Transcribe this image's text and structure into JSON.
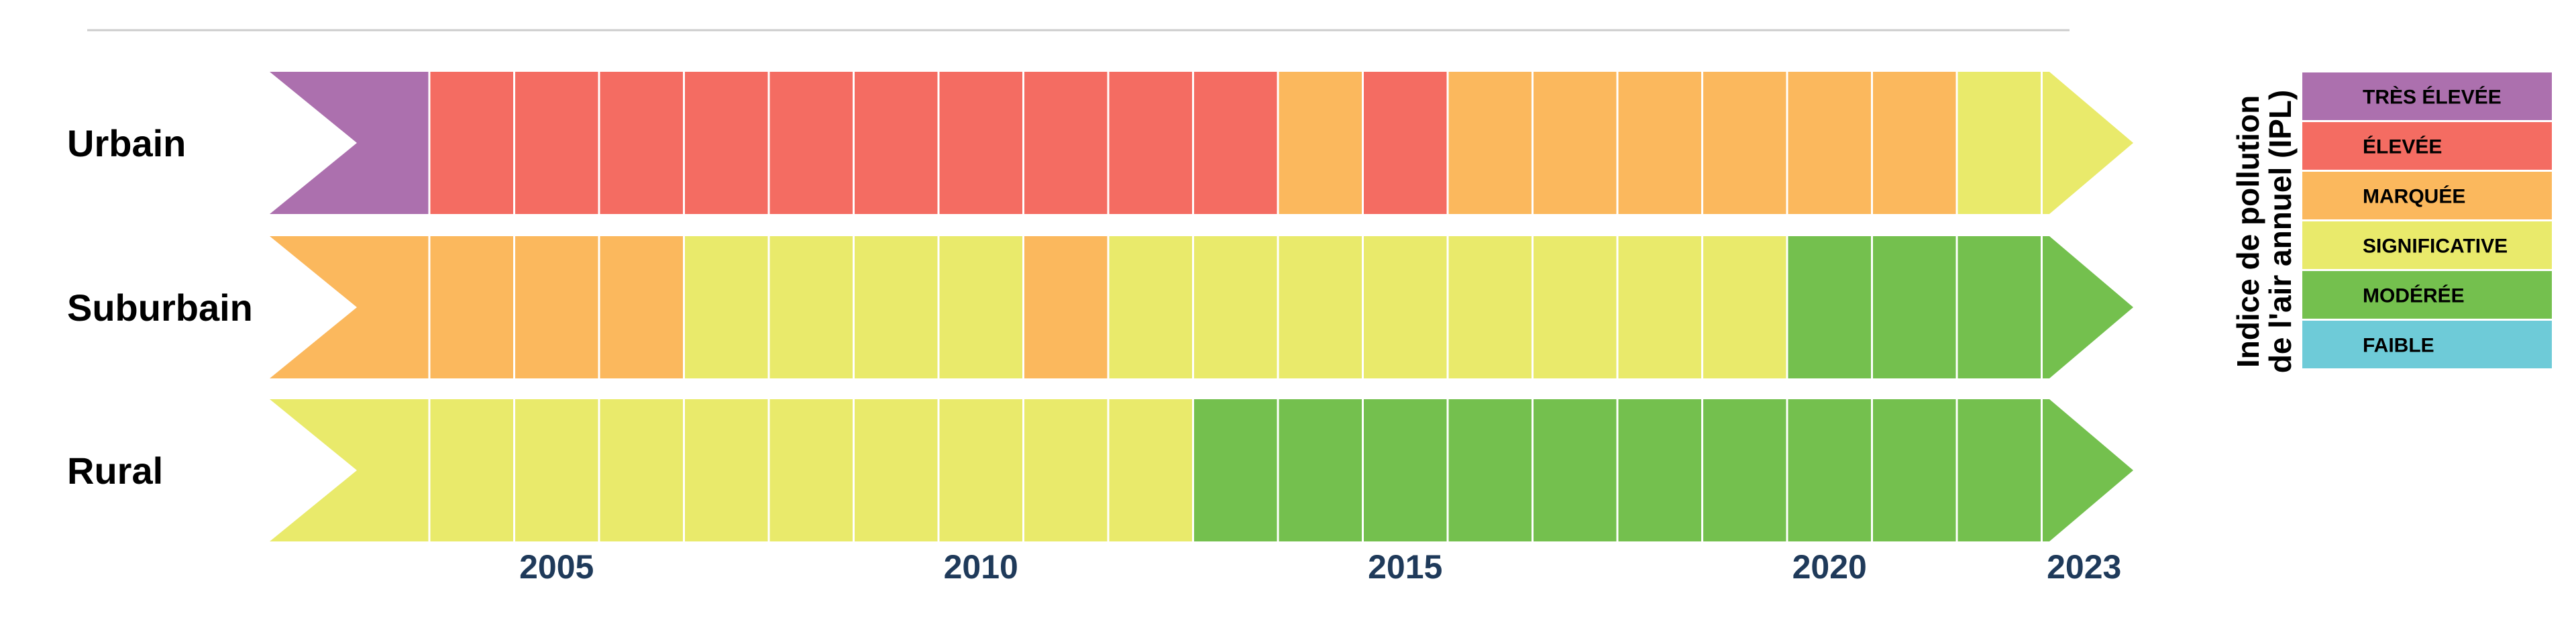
{
  "chart_data": {
    "type": "heatmap",
    "years": [
      2003,
      2004,
      2005,
      2006,
      2007,
      2008,
      2009,
      2010,
      2011,
      2012,
      2013,
      2014,
      2015,
      2016,
      2017,
      2018,
      2019,
      2020,
      2021,
      2022,
      2023
    ],
    "tick_labels": [
      {
        "year": 2005,
        "label": "2005"
      },
      {
        "year": 2010,
        "label": "2010"
      },
      {
        "year": 2015,
        "label": "2015"
      },
      {
        "year": 2020,
        "label": "2020"
      },
      {
        "year": 2023,
        "label": "2023"
      }
    ],
    "rows": [
      {
        "name": "Urbain",
        "levels": [
          "tres_elevee",
          "elevee",
          "elevee",
          "elevee",
          "elevee",
          "elevee",
          "elevee",
          "elevee",
          "elevee",
          "elevee",
          "elevee",
          "marquee",
          "elevee",
          "marquee",
          "marquee",
          "marquee",
          "marquee",
          "marquee",
          "marquee",
          "significative",
          "significative"
        ]
      },
      {
        "name": "Suburbain",
        "levels": [
          "marquee",
          "marquee",
          "marquee",
          "marquee",
          "significative",
          "significative",
          "significative",
          "significative",
          "marquee",
          "significative",
          "significative",
          "significative",
          "significative",
          "significative",
          "significative",
          "significative",
          "significative",
          "moderee",
          "moderee",
          "moderee",
          "moderee"
        ]
      },
      {
        "name": "Rural",
        "levels": [
          "significative",
          "significative",
          "significative",
          "significative",
          "significative",
          "significative",
          "significative",
          "significative",
          "significative",
          "significative",
          "moderee",
          "moderee",
          "moderee",
          "moderee",
          "moderee",
          "moderee",
          "moderee",
          "moderee",
          "moderee",
          "moderee",
          "moderee"
        ]
      }
    ],
    "legend": {
      "title_lines": [
        "Indice de pollution",
        "de l'air annuel (IPL)"
      ],
      "items": [
        {
          "key": "tres_elevee",
          "label": "TRÈS ÉLEVÉE",
          "color": "#ac70ae"
        },
        {
          "key": "elevee",
          "label": "ÉLEVÉE",
          "color": "#f46c62"
        },
        {
          "key": "marquee",
          "label": "MARQUÉE",
          "color": "#fbb85d"
        },
        {
          "key": "significative",
          "label": "SIGNIFICATIVE",
          "color": "#e9ea6b"
        },
        {
          "key": "moderee",
          "label": "MODÉRÉE",
          "color": "#74c04e"
        },
        {
          "key": "faible",
          "label": "FAIBLE",
          "color": "#6ecbd8"
        }
      ]
    },
    "legend_placement": "right"
  }
}
